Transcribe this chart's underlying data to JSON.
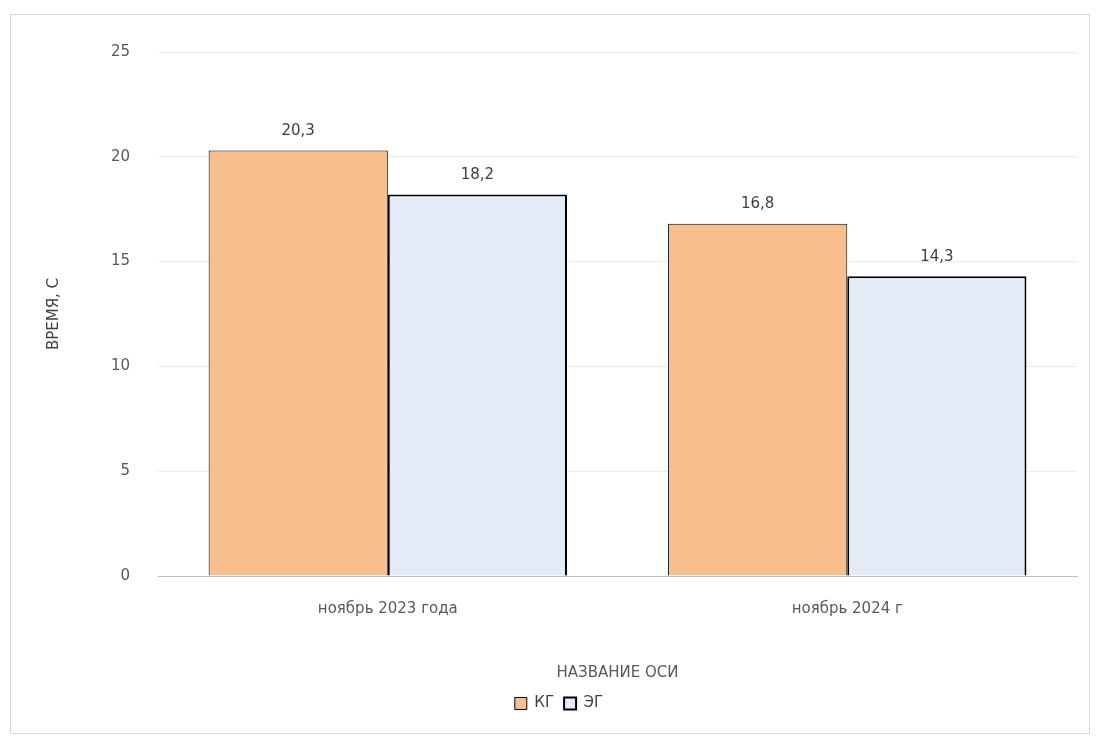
{
  "chart_data": {
    "type": "bar",
    "xlabel": "НАЗВАНИЕ ОСИ",
    "ylabel": "ВРЕМЯ, С",
    "categories": [
      "ноябрь 2023 года",
      "ноябрь 2024 г"
    ],
    "series": [
      {
        "name": "КГ",
        "color": "#f8bf8e",
        "values": [
          20.3,
          16.8
        ],
        "value_labels": [
          "20,3",
          "16,8"
        ]
      },
      {
        "name": "ЭГ",
        "color": "#e4ebf6",
        "values": [
          18.2,
          14.3
        ],
        "value_labels": [
          "18,2",
          "14,3"
        ]
      }
    ],
    "ylim": [
      0,
      25
    ],
    "yticks": [
      0,
      5,
      10,
      15,
      20,
      25
    ],
    "grid": "y",
    "legend": "bottom"
  }
}
